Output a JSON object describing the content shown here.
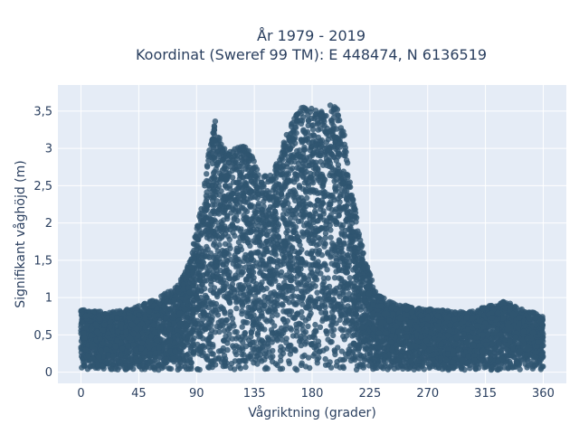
{
  "chart_data": {
    "type": "scatter",
    "title_line1": "År 1979 - 2019",
    "title_line2": "Koordinat (Sweref 99 TM): E 448474, N 6136519",
    "xlabel": "Vågriktning (grader)",
    "ylabel": "Signifikant våghöjd (m)",
    "xlim": [
      -18,
      378
    ],
    "ylim": [
      -0.15,
      3.85
    ],
    "xticks": [
      0,
      45,
      90,
      135,
      180,
      225,
      270,
      315,
      360
    ],
    "xtick_labels": [
      "0",
      "45",
      "90",
      "135",
      "180",
      "225",
      "270",
      "315",
      "360"
    ],
    "yticks": [
      0,
      0.5,
      1,
      1.5,
      2,
      2.5,
      3,
      3.5
    ],
    "ytick_labels": [
      "0",
      "0,5",
      "1",
      "1,5",
      "2",
      "2,5",
      "3",
      "3,5"
    ],
    "grid": true,
    "marker_color": "#2f5570",
    "background_color": "#e5ecf6",
    "envelope": {
      "direction": [
        0,
        20,
        40,
        60,
        75,
        85,
        95,
        100,
        105,
        110,
        120,
        130,
        140,
        150,
        160,
        170,
        180,
        190,
        195,
        200,
        205,
        210,
        220,
        230,
        240,
        250,
        270,
        300,
        330,
        360
      ],
      "max_height": [
        0.85,
        0.8,
        0.85,
        1.0,
        1.15,
        1.5,
        2.4,
        3.0,
        3.4,
        3.0,
        3.0,
        3.05,
        2.6,
        2.7,
        3.2,
        3.55,
        3.55,
        3.5,
        3.6,
        3.55,
        3.2,
        2.5,
        1.6,
        1.05,
        0.95,
        0.9,
        0.85,
        0.8,
        0.95,
        0.75
      ],
      "min_height": 0.03
    }
  }
}
